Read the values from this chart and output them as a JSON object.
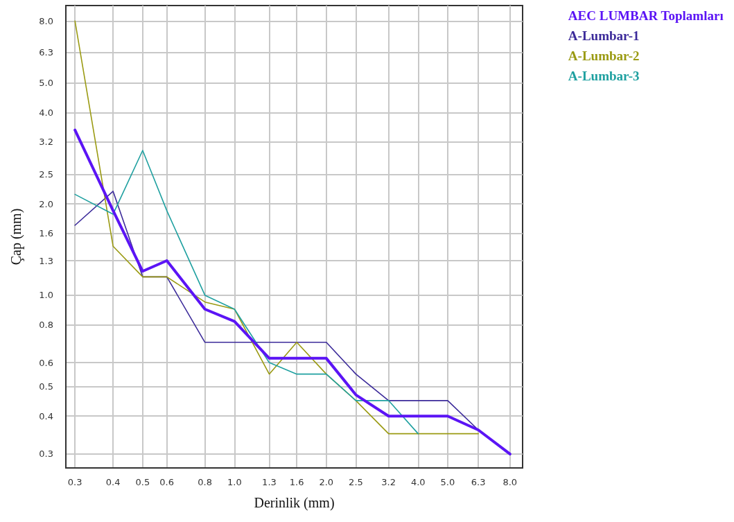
{
  "chart_data": {
    "type": "line",
    "xlabel": "Derinlik (mm)",
    "ylabel": "Çap (mm)",
    "log": "xy",
    "grid": true,
    "legend": "top right",
    "marker": "none",
    "line_style": "solid",
    "x": [
      0.3,
      0.4,
      0.5,
      0.6,
      0.8,
      1.0,
      1.3,
      1.6,
      2.0,
      2.5,
      3.2,
      4.0,
      5.0,
      6.3,
      8.0
    ],
    "xlim": [
      0.28,
      8.8
    ],
    "ylim": [
      0.27,
      9.0
    ],
    "xticks": [
      {
        "value": 0.3,
        "label": "0.3"
      },
      {
        "value": 0.4,
        "label": "0.4"
      },
      {
        "value": 0.5,
        "label": "0.5"
      },
      {
        "value": 0.6,
        "label": "0.6"
      },
      {
        "value": 0.8,
        "label": "0.8"
      },
      {
        "value": 1.0,
        "label": "1.0"
      },
      {
        "value": 1.3,
        "label": "1.3"
      },
      {
        "value": 1.6,
        "label": "1.6"
      },
      {
        "value": 2.0,
        "label": "2.0"
      },
      {
        "value": 2.5,
        "label": "2.5"
      },
      {
        "value": 3.2,
        "label": "3.2"
      },
      {
        "value": 4.0,
        "label": "4.0"
      },
      {
        "value": 5.0,
        "label": "5.0"
      },
      {
        "value": 6.3,
        "label": "6.3"
      },
      {
        "value": 8.0,
        "label": "8.0"
      }
    ],
    "yticks": [
      {
        "value": 0.3,
        "label": "0.3"
      },
      {
        "value": 0.4,
        "label": "0.4"
      },
      {
        "value": 0.5,
        "label": "0.5"
      },
      {
        "value": 0.6,
        "label": "0.6"
      },
      {
        "value": 0.8,
        "label": "0.8"
      },
      {
        "value": 1.0,
        "label": "1.0"
      },
      {
        "value": 1.3,
        "label": "1.3"
      },
      {
        "value": 1.6,
        "label": "1.6"
      },
      {
        "value": 2.0,
        "label": "2.0"
      },
      {
        "value": 2.5,
        "label": "2.5"
      },
      {
        "value": 3.2,
        "label": "3.2"
      },
      {
        "value": 4.0,
        "label": "4.0"
      },
      {
        "value": 5.0,
        "label": "5.0"
      },
      {
        "value": 6.3,
        "label": "6.3"
      },
      {
        "value": 8.0,
        "label": "8.0"
      }
    ],
    "series": [
      {
        "name": "AEC LUMBAR Toplamları",
        "color": "#5b14f5",
        "values": [
          3.5,
          1.9,
          1.2,
          1.3,
          0.9,
          0.82,
          0.62,
          0.62,
          0.62,
          0.47,
          0.4,
          0.4,
          0.4,
          0.36,
          0.3
        ]
      },
      {
        "name": "A-Lumbar-1",
        "color": "#3c2b9a",
        "values": [
          1.7,
          2.2,
          1.15,
          1.15,
          0.7,
          0.7,
          0.7,
          0.7,
          0.7,
          0.55,
          0.45,
          0.45,
          0.45,
          0.36,
          null
        ]
      },
      {
        "name": "A-Lumbar-2",
        "color": "#9a9a12",
        "values": [
          8.0,
          1.45,
          1.15,
          1.15,
          0.95,
          0.9,
          0.55,
          0.7,
          0.55,
          0.45,
          0.35,
          0.35,
          0.35,
          0.35,
          null
        ]
      },
      {
        "name": "A-Lumbar-3",
        "color": "#1fa0a0",
        "values": [
          2.15,
          1.85,
          3.0,
          1.9,
          1.0,
          0.9,
          0.6,
          0.55,
          0.55,
          0.45,
          0.45,
          0.35,
          null,
          null,
          null
        ]
      }
    ]
  }
}
